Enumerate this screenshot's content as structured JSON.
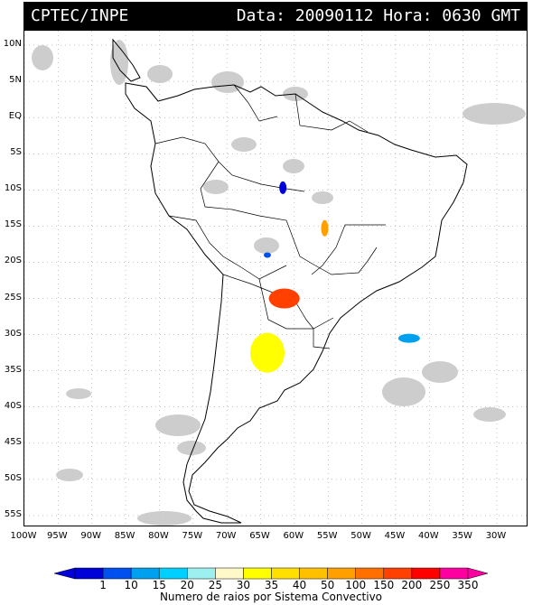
{
  "header": {
    "left": "CPTEC/INPE",
    "right": "Data: 20090112 Hora: 0630 GMT"
  },
  "lat_labels": [
    "10N",
    "5N",
    "EQ",
    "5S",
    "10S",
    "15S",
    "20S",
    "25S",
    "30S",
    "35S",
    "40S",
    "45S",
    "50S",
    "55S"
  ],
  "lon_labels": [
    "100W",
    "95W",
    "90W",
    "85W",
    "80W",
    "75W",
    "70W",
    "65W",
    "60W",
    "55W",
    "50W",
    "45W",
    "40W",
    "35W",
    "30W"
  ],
  "legend": {
    "values": [
      "1",
      "10",
      "15",
      "20",
      "25",
      "30",
      "35",
      "40",
      "50",
      "100",
      "150",
      "200",
      "250",
      "350"
    ],
    "colors": [
      "#0000d8",
      "#0050f0",
      "#00a0f0",
      "#00d0ff",
      "#9ef0f0",
      "#fff8c8",
      "#ffff00",
      "#ffe000",
      "#ffc000",
      "#ffa000",
      "#ff7000",
      "#ff4000",
      "#ff0000",
      "#ff00a0"
    ],
    "caption": "Numero de raios por Sistema Convectivo"
  },
  "systems": [
    {
      "id": "system-mato-grosso-blue",
      "lon": -61.7,
      "lat": -9.7,
      "color": "#0000d8"
    },
    {
      "id": "system-mato-grosso-orange",
      "lon": -55.5,
      "lat": -15.3,
      "color": "#ffa000"
    },
    {
      "id": "system-paraguay-red",
      "lon": -61.5,
      "lat": -25.0,
      "color": "#ff4000"
    },
    {
      "id": "system-argentina-yellow",
      "lon": -64.0,
      "lat": -32.5,
      "color": "#ffff00"
    },
    {
      "id": "system-atlantic-cyan",
      "lon": -43.0,
      "lat": -30.5,
      "color": "#00a0f0"
    },
    {
      "id": "system-bolivia-small-blue",
      "lon": -64.0,
      "lat": -19.0,
      "color": "#0050f0"
    }
  ]
}
